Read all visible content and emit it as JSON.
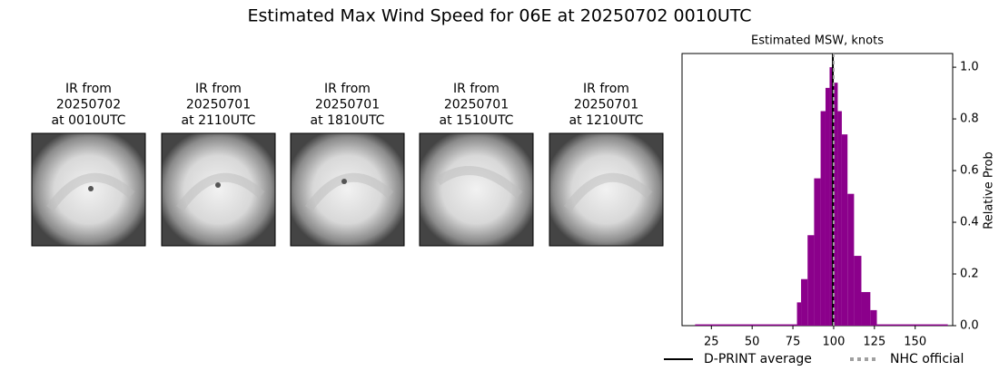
{
  "title": "Estimated Max Wind Speed for 06E at 20250702 0010UTC",
  "images": [
    {
      "lines": [
        "IR from",
        "20250702",
        "at 0010UTC"
      ]
    },
    {
      "lines": [
        "IR from",
        "20250701",
        "at 2110UTC"
      ]
    },
    {
      "lines": [
        "IR from",
        "20250701",
        "at 1810UTC"
      ]
    },
    {
      "lines": [
        "IR from",
        "20250701",
        "at 1510UTC"
      ]
    },
    {
      "lines": [
        "IR from",
        "20250701",
        "at 1210UTC"
      ]
    }
  ],
  "chart_data": {
    "type": "histogram",
    "title": "Estimated MSW, knots",
    "y_label": "Relative Prob",
    "bins": [
      15,
      77.5,
      80,
      84,
      88,
      92,
      95,
      97.5,
      100,
      102.5,
      105,
      108.5,
      112.5,
      117,
      122.5,
      126.5,
      170
    ],
    "values": [
      0.005,
      0.09,
      0.18,
      0.35,
      0.57,
      0.83,
      0.92,
      1.0,
      0.94,
      0.83,
      0.74,
      0.51,
      0.27,
      0.13,
      0.06,
      0.005
    ],
    "color": "#8b008b",
    "xlim": [
      7,
      173
    ],
    "ylim": [
      0,
      1.053
    ],
    "xticks": [
      25,
      50,
      75,
      100,
      125,
      150
    ],
    "yticks": [
      {
        "value": 0,
        "label": "0.0"
      },
      0.2,
      0.4,
      0.6,
      0.8,
      {
        "value": 1,
        "label": "1.0"
      }
    ],
    "y_axis_side": "right",
    "lines": [
      {
        "name": "D-PRINT average",
        "x": 99.5,
        "color": "#000000",
        "style": "solid"
      },
      {
        "name": "NHC official",
        "x": 100,
        "color": "#a0a0a0",
        "style": "dashed"
      }
    ]
  }
}
